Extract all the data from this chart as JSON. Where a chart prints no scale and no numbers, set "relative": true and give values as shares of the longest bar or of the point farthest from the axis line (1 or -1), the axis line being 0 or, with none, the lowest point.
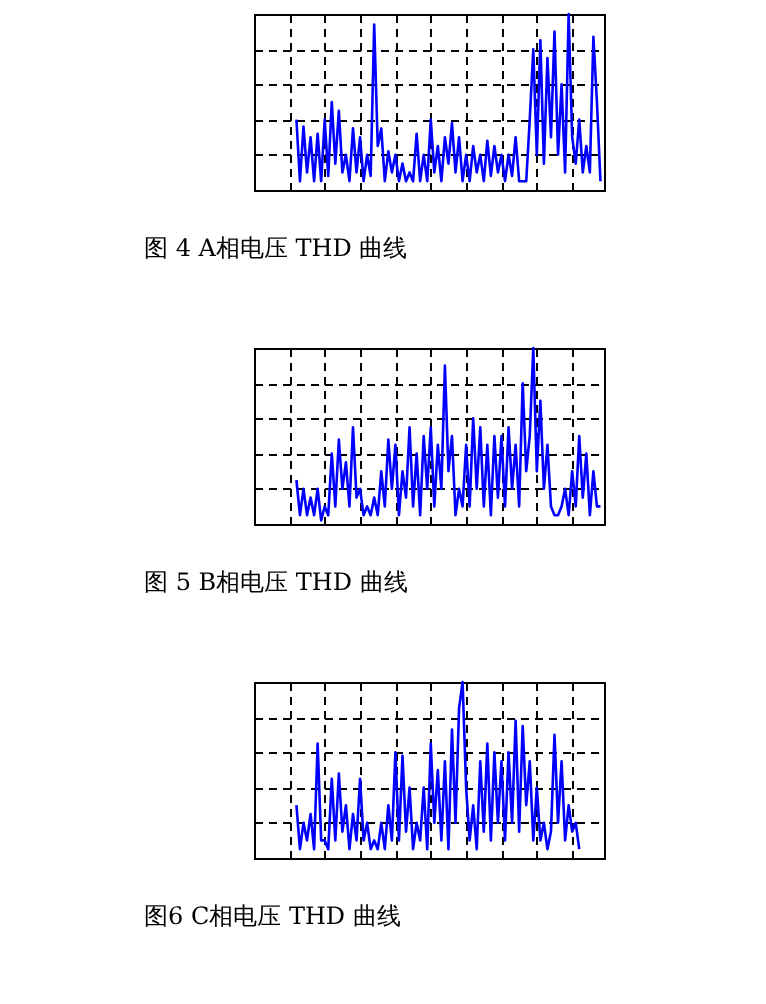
{
  "chart_data": [
    {
      "type": "line",
      "title": "图 4 A相电压 THD 曲线",
      "relative": true,
      "grid": true,
      "tick_labels": false,
      "categories": [
        null,
        null,
        null,
        null,
        null,
        null,
        null,
        null,
        null,
        null,
        null,
        null,
        null,
        null,
        null,
        null,
        null,
        null,
        null,
        null,
        null,
        null,
        null,
        null,
        null,
        null,
        null,
        null,
        null,
        null,
        null,
        null,
        null,
        null,
        null,
        null,
        null,
        null,
        null,
        null,
        null,
        null,
        null,
        null,
        null,
        null,
        null,
        null,
        null,
        null,
        null,
        null,
        null,
        null,
        null,
        null,
        null,
        null,
        null,
        null,
        null,
        null,
        null,
        null,
        null,
        null,
        null,
        null,
        null,
        null,
        null,
        null,
        null,
        null,
        null,
        null,
        null,
        null,
        null,
        null,
        null,
        null,
        null,
        null,
        null,
        null,
        null,
        null,
        null,
        null,
        null,
        null,
        null,
        null,
        null,
        null,
        null,
        null,
        null,
        null
      ],
      "series": [
        {
          "color": "#0000ff",
          "values": [
            null,
            null,
            null,
            null,
            null,
            null,
            null,
            null,
            null,
            null,
            null,
            null,
            0.4,
            0.05,
            0.36,
            0.1,
            0.3,
            0.05,
            0.32,
            0.05,
            0.4,
            0.08,
            0.5,
            0.15,
            0.45,
            0.1,
            0.2,
            0.05,
            0.35,
            0.1,
            0.3,
            0.05,
            0.2,
            0.08,
            0.94,
            0.25,
            0.35,
            0.05,
            0.22,
            0.1,
            0.2,
            0.05,
            0.15,
            0.05,
            0.1,
            0.05,
            0.32,
            0.05,
            0.2,
            0.05,
            0.4,
            0.1,
            0.25,
            0.05,
            0.3,
            0.15,
            0.38,
            0.1,
            0.3,
            0.05,
            0.2,
            0.05,
            0.25,
            0.1,
            0.2,
            0.05,
            0.28,
            0.08,
            0.25,
            0.1,
            0.2,
            0.05,
            0.2,
            0.08,
            0.3,
            0.05,
            0.05,
            0.05,
            0.4,
            0.8,
            0.2,
            0.85,
            0.15,
            0.75,
            0.3,
            0.9,
            0.2,
            0.6,
            0.1,
            1.0,
            0.3,
            0.15,
            0.4,
            0.1,
            0.25,
            0.1,
            0.87,
            0.5,
            0.05,
            null
          ]
        }
      ]
    },
    {
      "type": "line",
      "title": "图 5 B相电压 THD 曲线",
      "relative": true,
      "grid": true,
      "tick_labels": false,
      "categories": [
        null,
        null,
        null,
        null,
        null,
        null,
        null,
        null,
        null,
        null,
        null,
        null,
        null,
        null,
        null,
        null,
        null,
        null,
        null,
        null,
        null,
        null,
        null,
        null,
        null,
        null,
        null,
        null,
        null,
        null,
        null,
        null,
        null,
        null,
        null,
        null,
        null,
        null,
        null,
        null,
        null,
        null,
        null,
        null,
        null,
        null,
        null,
        null,
        null,
        null,
        null,
        null,
        null,
        null,
        null,
        null,
        null,
        null,
        null,
        null,
        null,
        null,
        null,
        null,
        null,
        null,
        null,
        null,
        null,
        null,
        null,
        null,
        null,
        null,
        null,
        null,
        null,
        null,
        null,
        null,
        null,
        null,
        null,
        null,
        null,
        null,
        null,
        null,
        null,
        null,
        null,
        null,
        null,
        null,
        null,
        null,
        null,
        null,
        null,
        null
      ],
      "series": [
        {
          "color": "#0000ff",
          "values": [
            null,
            null,
            null,
            null,
            null,
            null,
            null,
            null,
            null,
            null,
            null,
            null,
            0.25,
            0.05,
            0.2,
            0.05,
            0.15,
            0.05,
            0.2,
            0.02,
            0.1,
            0.05,
            0.4,
            0.1,
            0.48,
            0.2,
            0.35,
            0.1,
            0.55,
            0.15,
            0.2,
            0.05,
            0.1,
            0.05,
            0.15,
            0.05,
            0.3,
            0.1,
            0.48,
            0.2,
            0.45,
            0.05,
            0.3,
            0.15,
            0.55,
            0.1,
            0.4,
            0.05,
            0.5,
            0.2,
            0.55,
            0.1,
            0.45,
            0.2,
            0.9,
            0.3,
            0.5,
            0.05,
            0.2,
            0.1,
            0.45,
            0.1,
            0.6,
            0.2,
            0.55,
            0.1,
            0.45,
            0.05,
            0.5,
            0.15,
            0.5,
            0.1,
            0.55,
            0.2,
            0.45,
            0.1,
            0.8,
            0.3,
            0.5,
            1.0,
            0.3,
            0.7,
            0.2,
            0.45,
            0.1,
            0.05,
            0.05,
            0.1,
            0.2,
            0.05,
            0.3,
            0.1,
            0.5,
            0.15,
            0.4,
            0.05,
            0.3,
            0.1,
            0.1,
            null
          ]
        }
      ]
    },
    {
      "type": "line",
      "title": "图6 C相电压 THD 曲线",
      "relative": true,
      "grid": true,
      "tick_labels": false,
      "categories": [
        null,
        null,
        null,
        null,
        null,
        null,
        null,
        null,
        null,
        null,
        null,
        null,
        null,
        null,
        null,
        null,
        null,
        null,
        null,
        null,
        null,
        null,
        null,
        null,
        null,
        null,
        null,
        null,
        null,
        null,
        null,
        null,
        null,
        null,
        null,
        null,
        null,
        null,
        null,
        null,
        null,
        null,
        null,
        null,
        null,
        null,
        null,
        null,
        null,
        null,
        null,
        null,
        null,
        null,
        null,
        null,
        null,
        null,
        null,
        null,
        null,
        null,
        null,
        null,
        null,
        null,
        null,
        null,
        null,
        null,
        null,
        null,
        null,
        null,
        null,
        null,
        null,
        null,
        null,
        null,
        null,
        null,
        null,
        null,
        null,
        null,
        null,
        null,
        null,
        null,
        null,
        null,
        null,
        null,
        null,
        null,
        null,
        null,
        null,
        null
      ],
      "series": [
        {
          "color": "#0000ff",
          "values": [
            null,
            null,
            null,
            null,
            null,
            null,
            null,
            null,
            null,
            null,
            null,
            null,
            0.3,
            0.05,
            0.2,
            0.1,
            0.25,
            0.05,
            0.65,
            0.1,
            0.1,
            0.05,
            0.45,
            0.1,
            0.48,
            0.15,
            0.3,
            0.05,
            0.25,
            0.1,
            0.45,
            0.1,
            0.2,
            0.05,
            0.1,
            0.05,
            0.2,
            0.05,
            0.3,
            0.1,
            0.6,
            0.1,
            0.58,
            0.15,
            0.4,
            0.05,
            0.2,
            0.1,
            0.4,
            0.05,
            0.65,
            0.2,
            0.5,
            0.1,
            0.55,
            0.05,
            0.73,
            0.2,
            0.85,
            1.0,
            0.4,
            0.1,
            0.3,
            0.05,
            0.55,
            0.15,
            0.65,
            0.1,
            0.6,
            0.2,
            0.55,
            0.1,
            0.6,
            0.2,
            0.78,
            0.15,
            0.75,
            0.3,
            0.55,
            0.1,
            0.4,
            0.1,
            0.2,
            0.05,
            0.15,
            0.7,
            0.2,
            0.55,
            0.1,
            0.3,
            0.15,
            0.2,
            0.05,
            null,
            null,
            null,
            null,
            null,
            null,
            null
          ]
        }
      ]
    }
  ]
}
